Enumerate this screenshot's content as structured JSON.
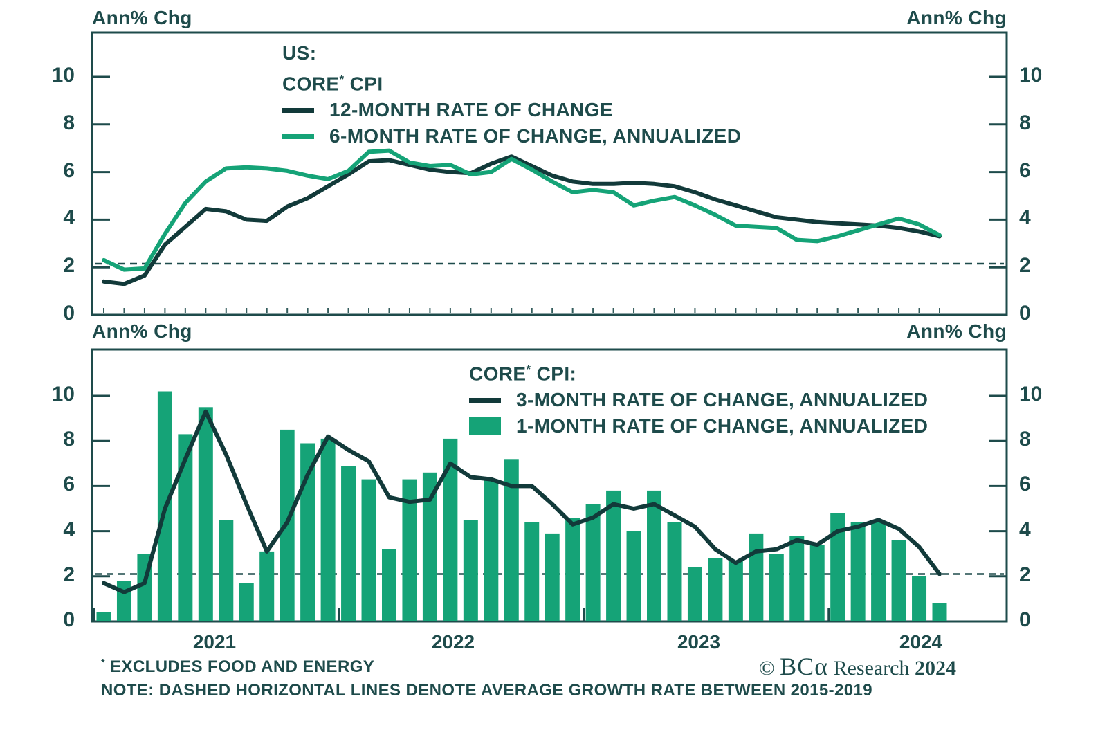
{
  "colors": {
    "teal": "#1E4B4B",
    "dark_line": "#123A3A",
    "green": "#15A377",
    "background": "#FFFFFF"
  },
  "top_chart": {
    "ylabel_left": "Ann% Chg",
    "ylabel_right": "Ann% Chg",
    "legend": {
      "title1": "US:",
      "title2_core": "CORE",
      "title2_star": "*",
      "title2_cpi": " CPI",
      "series1_label": "12-MONTH RATE OF CHANGE",
      "series2_label": "6-MONTH RATE OF CHANGE, ANNUALIZED"
    }
  },
  "bottom_chart": {
    "ylabel_left": "Ann% Chg",
    "ylabel_right": "Ann% Chg",
    "legend": {
      "title_core": "CORE",
      "title_star": "*",
      "title_cpi": " CPI:",
      "series1_label": "3-MONTH RATE OF CHANGE, ANNUALIZED",
      "series2_label": "1-MONTH RATE OF CHANGE, ANNUALIZED"
    }
  },
  "footer": {
    "note1_star": "*",
    "note1_text": " EXCLUDES FOOD AND ENERGY",
    "note2_text": "NOTE: DASHED HORIZONTAL LINES DENOTE AVERAGE GROWTH RATE BETWEEN 2015-2019"
  },
  "branding": {
    "copyright": "© ",
    "name_bc": "BC",
    "name_alpha": "α",
    "name_rest": " Research ",
    "year": "2024"
  },
  "chart_data": [
    {
      "type": "line",
      "panel": "top",
      "title": "US: CORE* CPI",
      "x_unit": "month",
      "x_years": [
        "2021",
        "2022",
        "2023",
        "2024"
      ],
      "n_points": 42,
      "yticks": [
        0,
        2,
        4,
        6,
        8,
        10
      ],
      "ylim": [
        0,
        11.9
      ],
      "grid": false,
      "legend_position": "top-center-inside",
      "dashed_avg_line": 2.15,
      "series": [
        {
          "name": "12-MONTH RATE OF CHANGE",
          "color_key": "dark_line",
          "values": [
            1.4,
            1.3,
            1.65,
            2.95,
            3.7,
            4.45,
            4.35,
            4.0,
            3.95,
            4.55,
            4.9,
            5.4,
            5.9,
            6.45,
            6.5,
            6.3,
            6.1,
            6.0,
            5.95,
            6.35,
            6.65,
            6.25,
            5.85,
            5.6,
            5.5,
            5.5,
            5.55,
            5.5,
            5.4,
            5.15,
            4.85,
            4.6,
            4.35,
            4.1,
            4.0,
            3.9,
            3.85,
            3.8,
            3.75,
            3.65,
            3.5,
            3.3
          ]
        },
        {
          "name": "6-MONTH RATE OF CHANGE, ANNUALIZED",
          "color_key": "green",
          "values": [
            2.3,
            1.9,
            1.95,
            3.4,
            4.7,
            5.6,
            6.15,
            6.2,
            6.15,
            6.05,
            5.85,
            5.7,
            6.05,
            6.85,
            6.9,
            6.4,
            6.25,
            6.3,
            5.9,
            6.0,
            6.55,
            6.1,
            5.6,
            5.15,
            5.25,
            5.15,
            4.6,
            4.8,
            4.95,
            4.6,
            4.2,
            3.75,
            3.7,
            3.65,
            3.15,
            3.1,
            3.3,
            3.55,
            3.8,
            4.05,
            3.8,
            3.35
          ]
        }
      ]
    },
    {
      "type": "bar+line",
      "panel": "bottom",
      "title": "CORE* CPI: 3-MONTH AND 1-MONTH RATE OF CHANGE, ANNUALIZED",
      "x_unit": "month",
      "x_years": [
        "2021",
        "2022",
        "2023",
        "2024"
      ],
      "n_points": 42,
      "yticks": [
        0,
        2,
        4,
        6,
        8,
        10
      ],
      "ylim": [
        0,
        12.05
      ],
      "grid": false,
      "legend_position": "top-center-inside",
      "dashed_avg_line": 2.1,
      "bar_series": {
        "name": "1-MONTH RATE OF CHANGE, ANNUALIZED",
        "color_key": "green",
        "values": [
          0.4,
          1.8,
          3.0,
          10.2,
          8.3,
          9.5,
          4.5,
          1.7,
          3.1,
          8.5,
          7.9,
          8.1,
          6.9,
          6.3,
          3.2,
          6.3,
          6.6,
          8.1,
          4.5,
          6.3,
          7.2,
          4.4,
          3.9,
          4.6,
          5.2,
          5.8,
          4.0,
          5.8,
          4.4,
          2.4,
          2.8,
          2.7,
          3.9,
          3.0,
          3.8,
          3.4,
          4.8,
          4.4,
          4.4,
          3.6,
          2.0,
          0.8
        ]
      },
      "line_series": {
        "name": "3-MONTH RATE OF CHANGE, ANNUALIZED",
        "color_key": "dark_line",
        "values": [
          1.7,
          1.3,
          1.7,
          5.0,
          7.2,
          9.3,
          7.4,
          5.2,
          3.1,
          4.4,
          6.5,
          8.2,
          7.6,
          7.1,
          5.5,
          5.3,
          5.4,
          7.0,
          6.4,
          6.3,
          6.0,
          6.0,
          5.2,
          4.3,
          4.6,
          5.2,
          5.0,
          5.2,
          4.7,
          4.2,
          3.2,
          2.6,
          3.1,
          3.2,
          3.6,
          3.4,
          4.0,
          4.2,
          4.5,
          4.1,
          3.3,
          2.1
        ]
      }
    }
  ]
}
